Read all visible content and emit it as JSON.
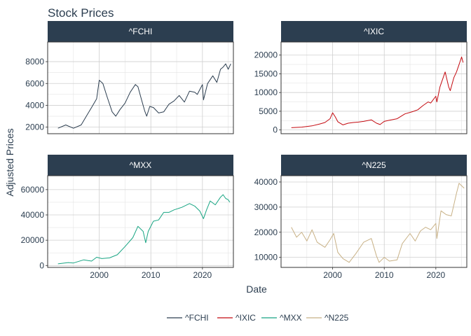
{
  "chart_data": {
    "type": "line",
    "title": "Stock Prices",
    "xlabel": "Date",
    "ylabel": "Adjusted Prices",
    "grid": true,
    "legend": "bottom",
    "xlim": [
      1990,
      2026
    ],
    "x_ticks": [
      2000,
      2010,
      2020
    ],
    "series": [
      {
        "name": "^FCHI",
        "color": "#2c3e50",
        "ylim": [
          1400,
          9800
        ],
        "y_ticks": [
          2000,
          4000,
          6000,
          8000
        ],
        "x": [
          1992.0,
          1993.5,
          1995.0,
          1996.5,
          1997.5,
          1998.5,
          1999.5,
          2000.0,
          2000.7,
          2001.5,
          2002.5,
          2003.2,
          2004.0,
          2005.0,
          2006.0,
          2007.0,
          2007.5,
          2008.2,
          2008.8,
          2009.2,
          2009.8,
          2010.5,
          2011.5,
          2012.5,
          2013.5,
          2014.5,
          2015.5,
          2016.5,
          2017.5,
          2018.5,
          2019.0,
          2020.0,
          2020.2,
          2021.0,
          2022.0,
          2022.8,
          2023.5,
          2024.0,
          2024.5,
          2025.0,
          2025.5
        ],
        "y": [
          1900,
          2200,
          1900,
          2200,
          3000,
          3800,
          4600,
          6300,
          6000,
          4800,
          3400,
          3000,
          3600,
          4200,
          5200,
          5900,
          5700,
          4500,
          3500,
          3000,
          3900,
          3800,
          3300,
          3400,
          4100,
          4400,
          4900,
          4300,
          5300,
          5200,
          5000,
          5900,
          4500,
          6000,
          6700,
          6100,
          7300,
          7500,
          7800,
          7300,
          7800
        ]
      },
      {
        "name": "^IXIC",
        "color": "#c40a10",
        "ylim": [
          -1000,
          23500
        ],
        "y_ticks": [
          0,
          5000,
          10000,
          15000,
          20000
        ],
        "x": [
          1992.0,
          1994.0,
          1996.0,
          1997.5,
          1998.5,
          1999.5,
          2000.0,
          2000.5,
          2001.0,
          2002.0,
          2003.0,
          2004.0,
          2005.0,
          2006.0,
          2007.5,
          2008.5,
          2009.2,
          2010.0,
          2011.0,
          2012.5,
          2014.0,
          2015.5,
          2016.5,
          2017.5,
          2018.5,
          2019.0,
          2020.0,
          2020.2,
          2020.8,
          2021.8,
          2022.5,
          2022.8,
          2023.5,
          2024.0,
          2024.5,
          2025.0,
          2025.3
        ],
        "y": [
          600,
          750,
          1100,
          1600,
          2000,
          3000,
          4600,
          3500,
          2200,
          1350,
          1800,
          2000,
          2100,
          2300,
          2700,
          1800,
          1450,
          2300,
          2600,
          3000,
          4300,
          4900,
          5400,
          6500,
          7500,
          7200,
          9000,
          7500,
          11500,
          15500,
          11500,
          10500,
          14000,
          15500,
          17500,
          19500,
          18000
        ]
      },
      {
        "name": "^MXX",
        "color": "#18a583",
        "ylim": [
          -1500,
          71000
        ],
        "y_ticks": [
          0,
          20000,
          40000,
          60000
        ],
        "x": [
          1992.0,
          1994.0,
          1995.0,
          1997.0,
          1998.5,
          1999.5,
          2000.5,
          2002.0,
          2003.5,
          2005.0,
          2006.5,
          2007.5,
          2008.5,
          2009.0,
          2009.5,
          2010.5,
          2011.5,
          2012.5,
          2013.5,
          2014.5,
          2016.0,
          2017.5,
          2018.5,
          2019.5,
          2020.2,
          2020.8,
          2021.5,
          2022.5,
          2023.5,
          2024.0,
          2024.5,
          2025.0,
          2025.3
        ],
        "y": [
          1300,
          2300,
          2000,
          4500,
          3500,
          6500,
          5500,
          6000,
          8500,
          15000,
          22000,
          31000,
          27000,
          18000,
          27000,
          35000,
          36000,
          42000,
          42000,
          44000,
          46000,
          49000,
          47000,
          43000,
          37000,
          44000,
          51000,
          48000,
          54000,
          56000,
          53000,
          52000,
          50000
        ]
      },
      {
        "name": "^N225",
        "color": "#c8b186",
        "ylim": [
          6000,
          42500
        ],
        "y_ticks": [
          10000,
          20000,
          30000,
          40000
        ],
        "x": [
          1992.0,
          1993.0,
          1994.0,
          1995.0,
          1996.0,
          1997.0,
          1998.5,
          1999.5,
          2000.2,
          2001.0,
          2002.0,
          2003.2,
          2004.5,
          2006.0,
          2007.5,
          2008.5,
          2009.0,
          2010.0,
          2011.0,
          2012.5,
          2013.5,
          2015.0,
          2016.0,
          2017.0,
          2018.0,
          2019.0,
          2020.0,
          2020.2,
          2021.0,
          2022.0,
          2023.0,
          2023.5,
          2024.0,
          2024.5,
          2025.0,
          2025.5
        ],
        "y": [
          22000,
          18000,
          20000,
          16500,
          21000,
          16000,
          14000,
          17000,
          19500,
          12000,
          9500,
          8000,
          11500,
          16000,
          17500,
          10500,
          8000,
          10000,
          8500,
          9000,
          15500,
          19500,
          16500,
          20500,
          22000,
          21000,
          23500,
          17500,
          28500,
          27000,
          26500,
          31000,
          35500,
          39500,
          38500,
          37500
        ]
      }
    ]
  }
}
